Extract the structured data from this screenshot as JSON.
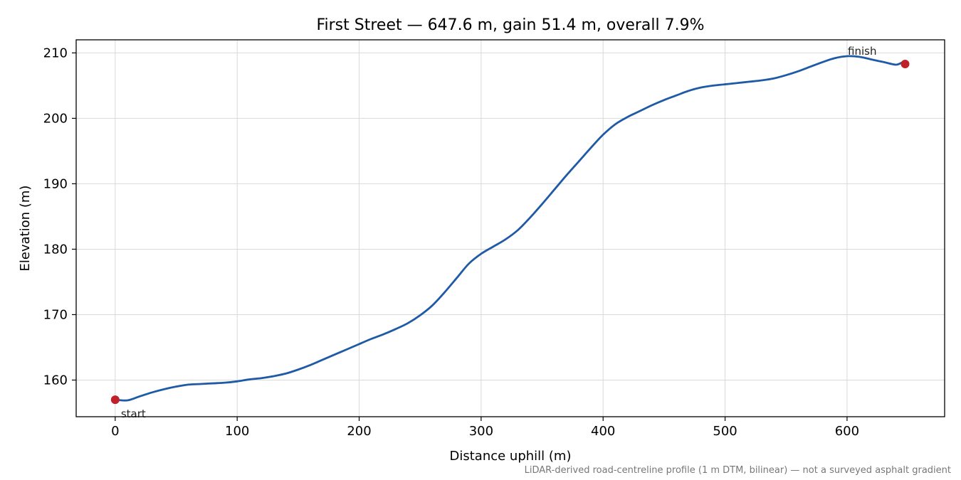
{
  "chart_data": {
    "type": "line",
    "title": "First Street — 647.6 m, gain 51.4 m, overall 7.9%",
    "xlabel": "Distance uphill (m)",
    "ylabel": "Elevation (m)",
    "xlim": [
      -32,
      680
    ],
    "ylim": [
      154.4,
      212
    ],
    "xticks": [
      0,
      100,
      200,
      300,
      400,
      500,
      600
    ],
    "yticks": [
      160,
      170,
      180,
      190,
      200,
      210
    ],
    "grid": true,
    "line_color": "#1f5aa6",
    "marker_color": "#c0202a",
    "series": [
      {
        "x": [
          0,
          10,
          20,
          30,
          40,
          50,
          60,
          70,
          80,
          90,
          100,
          110,
          120,
          130,
          140,
          150,
          160,
          170,
          180,
          190,
          200,
          210,
          220,
          230,
          240,
          250,
          260,
          270,
          280,
          290,
          300,
          310,
          320,
          330,
          340,
          350,
          360,
          370,
          380,
          390,
          400,
          410,
          420,
          430,
          440,
          450,
          460,
          470,
          480,
          490,
          500,
          510,
          520,
          530,
          540,
          550,
          560,
          570,
          580,
          590,
          600,
          610,
          620,
          630,
          640,
          645,
          647.6
        ],
        "y": [
          157.0,
          156.9,
          157.5,
          158.1,
          158.6,
          159.0,
          159.3,
          159.4,
          159.5,
          159.6,
          159.8,
          160.1,
          160.3,
          160.6,
          161.0,
          161.6,
          162.3,
          163.1,
          163.9,
          164.7,
          165.5,
          166.3,
          167.0,
          167.8,
          168.7,
          169.9,
          171.4,
          173.4,
          175.6,
          177.8,
          179.3,
          180.4,
          181.5,
          182.9,
          184.8,
          186.9,
          189.1,
          191.3,
          193.4,
          195.5,
          197.5,
          199.1,
          200.2,
          201.1,
          202.0,
          202.8,
          203.5,
          204.2,
          204.7,
          205.0,
          205.2,
          205.4,
          205.6,
          205.8,
          206.1,
          206.6,
          207.2,
          207.9,
          208.6,
          209.2,
          209.5,
          209.4,
          209.0,
          208.6,
          208.2,
          208.5,
          208.3
        ]
      }
    ],
    "markers": [
      {
        "label": "start",
        "x": 0,
        "y": 157.0
      },
      {
        "label": "finish",
        "x": 647.6,
        "y": 208.3
      }
    ],
    "footnote": "LiDAR-derived road-centreline profile (1 m DTM, bilinear) — not a surveyed asphalt gradient"
  }
}
